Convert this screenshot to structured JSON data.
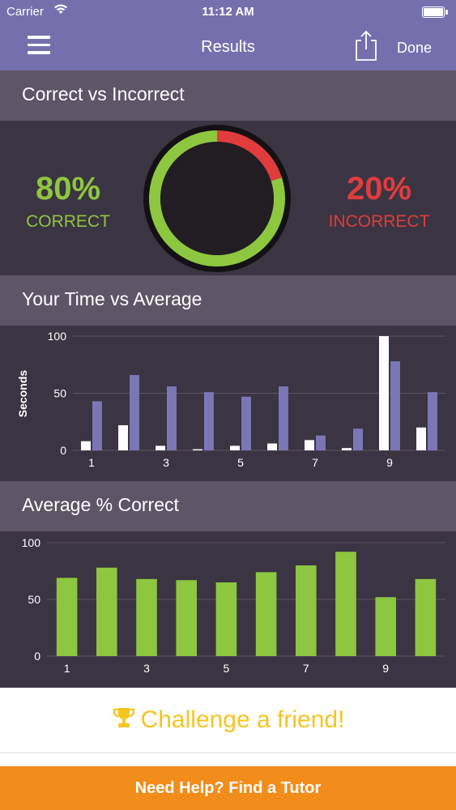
{
  "status_bar": {
    "carrier": "Carrier",
    "time": "11:12 AM"
  },
  "nav": {
    "title": "Results",
    "done_label": "Done"
  },
  "correct_section": {
    "title": "Correct vs Incorrect",
    "correct_pct": "80%",
    "correct_label": "CORRECT",
    "incorrect_pct": "20%",
    "incorrect_label": "INCORRECT",
    "correct_fraction": 0.8,
    "colors": {
      "correct": "#8dc63f",
      "incorrect": "#e03c3c"
    }
  },
  "time_section": {
    "title": "Your Time vs Average",
    "ylabel": "Seconds"
  },
  "avg_section": {
    "title": "Average % Correct"
  },
  "challenge": {
    "label": "Challenge a friend!"
  },
  "tutor": {
    "label": "Need Help?  Find a Tutor"
  },
  "chart_data": [
    {
      "type": "bar",
      "categories": [
        "1",
        "2",
        "3",
        "4",
        "5",
        "6",
        "7",
        "8",
        "9",
        "10"
      ],
      "tick_labels": [
        "1",
        "3",
        "5",
        "7",
        "9"
      ],
      "series": [
        {
          "values": [
            8,
            22,
            4,
            1,
            4,
            6,
            9,
            2,
            100,
            20
          ],
          "color": "#ffffff"
        },
        {
          "values": [
            43,
            66,
            56,
            51,
            47,
            56,
            13,
            19,
            78,
            51
          ],
          "color": "#7b76b5"
        }
      ],
      "ylim": [
        0,
        100
      ],
      "yticks": [
        0,
        50,
        100
      ],
      "ylabel": "Seconds",
      "grid": true
    },
    {
      "type": "bar",
      "categories": [
        "1",
        "2",
        "3",
        "4",
        "5",
        "6",
        "7",
        "8",
        "9",
        "10"
      ],
      "tick_labels": [
        "1",
        "3",
        "5",
        "7",
        "9"
      ],
      "series": [
        {
          "values": [
            69,
            78,
            68,
            67,
            65,
            74,
            80,
            92,
            52,
            68
          ],
          "color": "#8dc63f"
        }
      ],
      "ylim": [
        0,
        100
      ],
      "yticks": [
        0,
        50,
        100
      ],
      "grid": true
    }
  ]
}
